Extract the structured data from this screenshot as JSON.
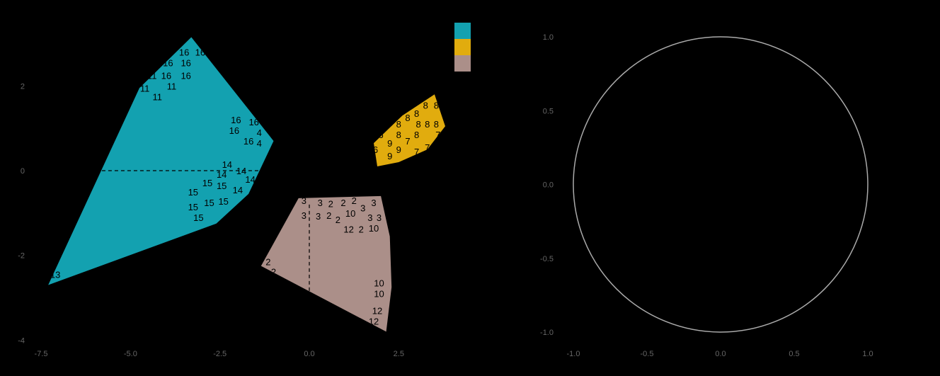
{
  "chart_data": [
    {
      "type": "scatter",
      "kind": "cluster hull plot",
      "title": "",
      "xlabel": "",
      "ylabel": "",
      "xlim": [
        -7.8,
        3.9
      ],
      "ylim": [
        -4.05,
        3.25
      ],
      "xticks": [
        -7.5,
        -5.0,
        -2.5,
        0.0,
        2.5
      ],
      "xtick_labels": [
        "-7.5",
        "-5.0",
        "-2.5",
        "0.0",
        "2.5"
      ],
      "yticks": [
        -4,
        -2,
        0,
        2
      ],
      "ytick_labels": [
        "-4",
        "-2",
        "0",
        "2"
      ],
      "grid": false,
      "legend": {
        "placement": "top-right",
        "entries": [
          {
            "label": "",
            "color": "#13a1b0"
          },
          {
            "label": "",
            "color": "#e1ac0e"
          },
          {
            "label": "",
            "color": "#ab8f89"
          }
        ]
      },
      "reference_lines": [
        {
          "orientation": "horizontal",
          "value": 0,
          "style": "dashed"
        },
        {
          "orientation": "vertical",
          "value": 0,
          "style": "dashed"
        }
      ],
      "clusters": [
        {
          "color": "#13a1b0",
          "hull": [
            [
              -3.3,
              3.15
            ],
            [
              -1.0,
              0.7
            ],
            [
              -1.7,
              -0.55
            ],
            [
              -2.6,
              -1.25
            ],
            [
              -7.3,
              -2.7
            ],
            [
              -4.75,
              1.95
            ]
          ],
          "points": [
            {
              "label": "16",
              "x": -3.5,
              "y": 2.8
            },
            {
              "label": "16",
              "x": -3.05,
              "y": 2.8
            },
            {
              "label": "16",
              "x": -3.95,
              "y": 2.55
            },
            {
              "label": "16",
              "x": -3.45,
              "y": 2.55
            },
            {
              "label": "16",
              "x": -4.0,
              "y": 2.25
            },
            {
              "label": "16",
              "x": -3.45,
              "y": 2.25
            },
            {
              "label": "11",
              "x": -4.4,
              "y": 2.25
            },
            {
              "label": "11",
              "x": -3.85,
              "y": 2.0
            },
            {
              "label": "11",
              "x": -4.6,
              "y": 1.95
            },
            {
              "label": "11",
              "x": -4.25,
              "y": 1.75
            },
            {
              "label": "16",
              "x": -2.05,
              "y": 1.2
            },
            {
              "label": "16",
              "x": -1.55,
              "y": 1.15
            },
            {
              "label": "16",
              "x": -2.1,
              "y": 0.95
            },
            {
              "label": "4",
              "x": -1.4,
              "y": 0.9
            },
            {
              "label": "16",
              "x": -1.7,
              "y": 0.7
            },
            {
              "label": "4",
              "x": -1.4,
              "y": 0.65
            },
            {
              "label": "14",
              "x": -2.3,
              "y": 0.15
            },
            {
              "label": "14",
              "x": -1.9,
              "y": 0.0
            },
            {
              "label": "14",
              "x": -2.45,
              "y": -0.08
            },
            {
              "label": "14",
              "x": -1.65,
              "y": -0.2
            },
            {
              "label": "15",
              "x": -2.85,
              "y": -0.28
            },
            {
              "label": "15",
              "x": -2.45,
              "y": -0.35
            },
            {
              "label": "15",
              "x": -3.25,
              "y": -0.5
            },
            {
              "label": "14",
              "x": -2.0,
              "y": -0.45
            },
            {
              "label": "15",
              "x": -3.25,
              "y": -0.85
            },
            {
              "label": "15",
              "x": -2.8,
              "y": -0.75
            },
            {
              "label": "15",
              "x": -2.4,
              "y": -0.72
            },
            {
              "label": "15",
              "x": -3.1,
              "y": -1.1
            },
            {
              "label": "13",
              "x": -7.1,
              "y": -2.45
            },
            {
              "label": "13",
              "x": -6.65,
              "y": -2.65
            }
          ]
        },
        {
          "color": "#e1ac0e",
          "hull": [
            [
              3.5,
              1.8
            ],
            [
              3.8,
              1.05
            ],
            [
              3.3,
              0.5
            ],
            [
              2.5,
              0.2
            ],
            [
              1.9,
              0.1
            ],
            [
              1.8,
              0.65
            ],
            [
              2.6,
              1.3
            ]
          ],
          "points": [
            {
              "label": "8",
              "x": 3.25,
              "y": 1.55
            },
            {
              "label": "8",
              "x": 3.55,
              "y": 1.55
            },
            {
              "label": "8",
              "x": 3.0,
              "y": 1.35
            },
            {
              "label": "8",
              "x": 2.75,
              "y": 1.25
            },
            {
              "label": "8",
              "x": 3.05,
              "y": 1.1
            },
            {
              "label": "8",
              "x": 3.3,
              "y": 1.1
            },
            {
              "label": "8",
              "x": 3.55,
              "y": 1.1
            },
            {
              "label": "8",
              "x": 2.5,
              "y": 1.1
            },
            {
              "label": "6",
              "x": 2.0,
              "y": 0.85
            },
            {
              "label": "8",
              "x": 2.5,
              "y": 0.85
            },
            {
              "label": "8",
              "x": 3.0,
              "y": 0.85
            },
            {
              "label": "7",
              "x": 2.75,
              "y": 0.7
            },
            {
              "label": "7",
              "x": 3.6,
              "y": 0.85
            },
            {
              "label": "9",
              "x": 2.25,
              "y": 0.65
            },
            {
              "label": "6",
              "x": 1.85,
              "y": 0.5
            },
            {
              "label": "9",
              "x": 2.5,
              "y": 0.5
            },
            {
              "label": "7",
              "x": 3.0,
              "y": 0.45
            },
            {
              "label": "7",
              "x": 3.3,
              "y": 0.55
            },
            {
              "label": "9",
              "x": 2.25,
              "y": 0.35
            }
          ]
        },
        {
          "color": "#ab8f89",
          "hull": [
            [
              -0.3,
              -0.65
            ],
            [
              2.0,
              -0.6
            ],
            [
              2.25,
              -1.55
            ],
            [
              2.3,
              -2.75
            ],
            [
              2.15,
              -3.8
            ],
            [
              -1.35,
              -2.25
            ]
          ],
          "points": [
            {
              "label": "3",
              "x": -0.15,
              "y": -0.7
            },
            {
              "label": "3",
              "x": 0.3,
              "y": -0.75
            },
            {
              "label": "2",
              "x": 0.6,
              "y": -0.78
            },
            {
              "label": "2",
              "x": 0.95,
              "y": -0.75
            },
            {
              "label": "2",
              "x": 1.25,
              "y": -0.7
            },
            {
              "label": "3",
              "x": 1.8,
              "y": -0.75
            },
            {
              "label": "3",
              "x": 1.5,
              "y": -0.88
            },
            {
              "label": "10",
              "x": 1.15,
              "y": -1.0
            },
            {
              "label": "3",
              "x": -0.15,
              "y": -1.05
            },
            {
              "label": "3",
              "x": 0.25,
              "y": -1.07
            },
            {
              "label": "2",
              "x": 0.55,
              "y": -1.05
            },
            {
              "label": "2",
              "x": 0.8,
              "y": -1.15
            },
            {
              "label": "3",
              "x": 1.7,
              "y": -1.1
            },
            {
              "label": "3",
              "x": 1.95,
              "y": -1.1
            },
            {
              "label": "12",
              "x": 1.1,
              "y": -1.38
            },
            {
              "label": "2",
              "x": 1.45,
              "y": -1.38
            },
            {
              "label": "10",
              "x": 1.8,
              "y": -1.35
            },
            {
              "label": "2",
              "x": -1.15,
              "y": -2.15
            },
            {
              "label": "2",
              "x": -1.0,
              "y": -2.38
            },
            {
              "label": "10",
              "x": 1.95,
              "y": -2.65
            },
            {
              "label": "10",
              "x": 1.95,
              "y": -2.9
            },
            {
              "label": "12",
              "x": 1.9,
              "y": -3.3
            },
            {
              "label": "12",
              "x": 1.8,
              "y": -3.55
            }
          ]
        }
      ]
    },
    {
      "type": "scatter",
      "kind": "correlation circle",
      "title": "",
      "xlabel": "",
      "ylabel": "",
      "xlim": [
        -1.05,
        1.05
      ],
      "ylim": [
        -1.05,
        1.05
      ],
      "xticks": [
        -1.0,
        -0.5,
        0.0,
        0.5,
        1.0
      ],
      "xtick_labels": [
        "-1.0",
        "-0.5",
        "0.0",
        "0.5",
        "1.0"
      ],
      "yticks": [
        -1.0,
        -0.5,
        0.0,
        0.5,
        1.0
      ],
      "ytick_labels": [
        "-1.0",
        "-0.5",
        "0.0",
        "0.5",
        "1.0"
      ],
      "grid": false,
      "shapes": [
        {
          "shape": "circle",
          "center": [
            0,
            0
          ],
          "radius": 1,
          "color": "#aaaaaa"
        }
      ]
    }
  ]
}
